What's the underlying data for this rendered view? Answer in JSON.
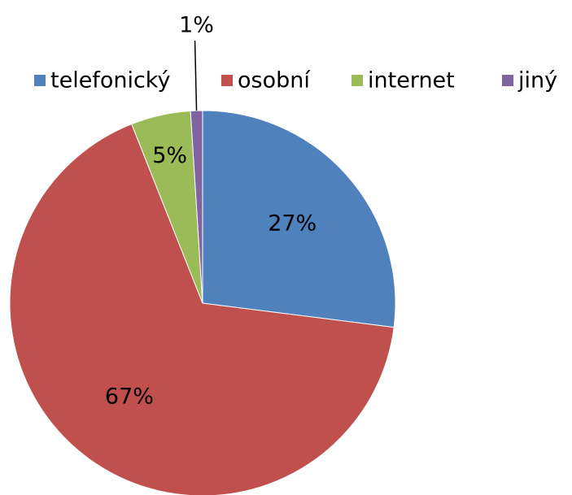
{
  "chart_data": {
    "type": "pie",
    "categories": [
      "telefonický",
      "osobní",
      "internet",
      "jiný"
    ],
    "values": [
      27,
      67,
      5,
      1
    ],
    "value_labels": [
      "27%",
      "67%",
      "5%",
      "1%"
    ],
    "colors": [
      "#4f81bd",
      "#c0504d",
      "#9bbb59",
      "#8064a2"
    ],
    "legend": "top"
  }
}
